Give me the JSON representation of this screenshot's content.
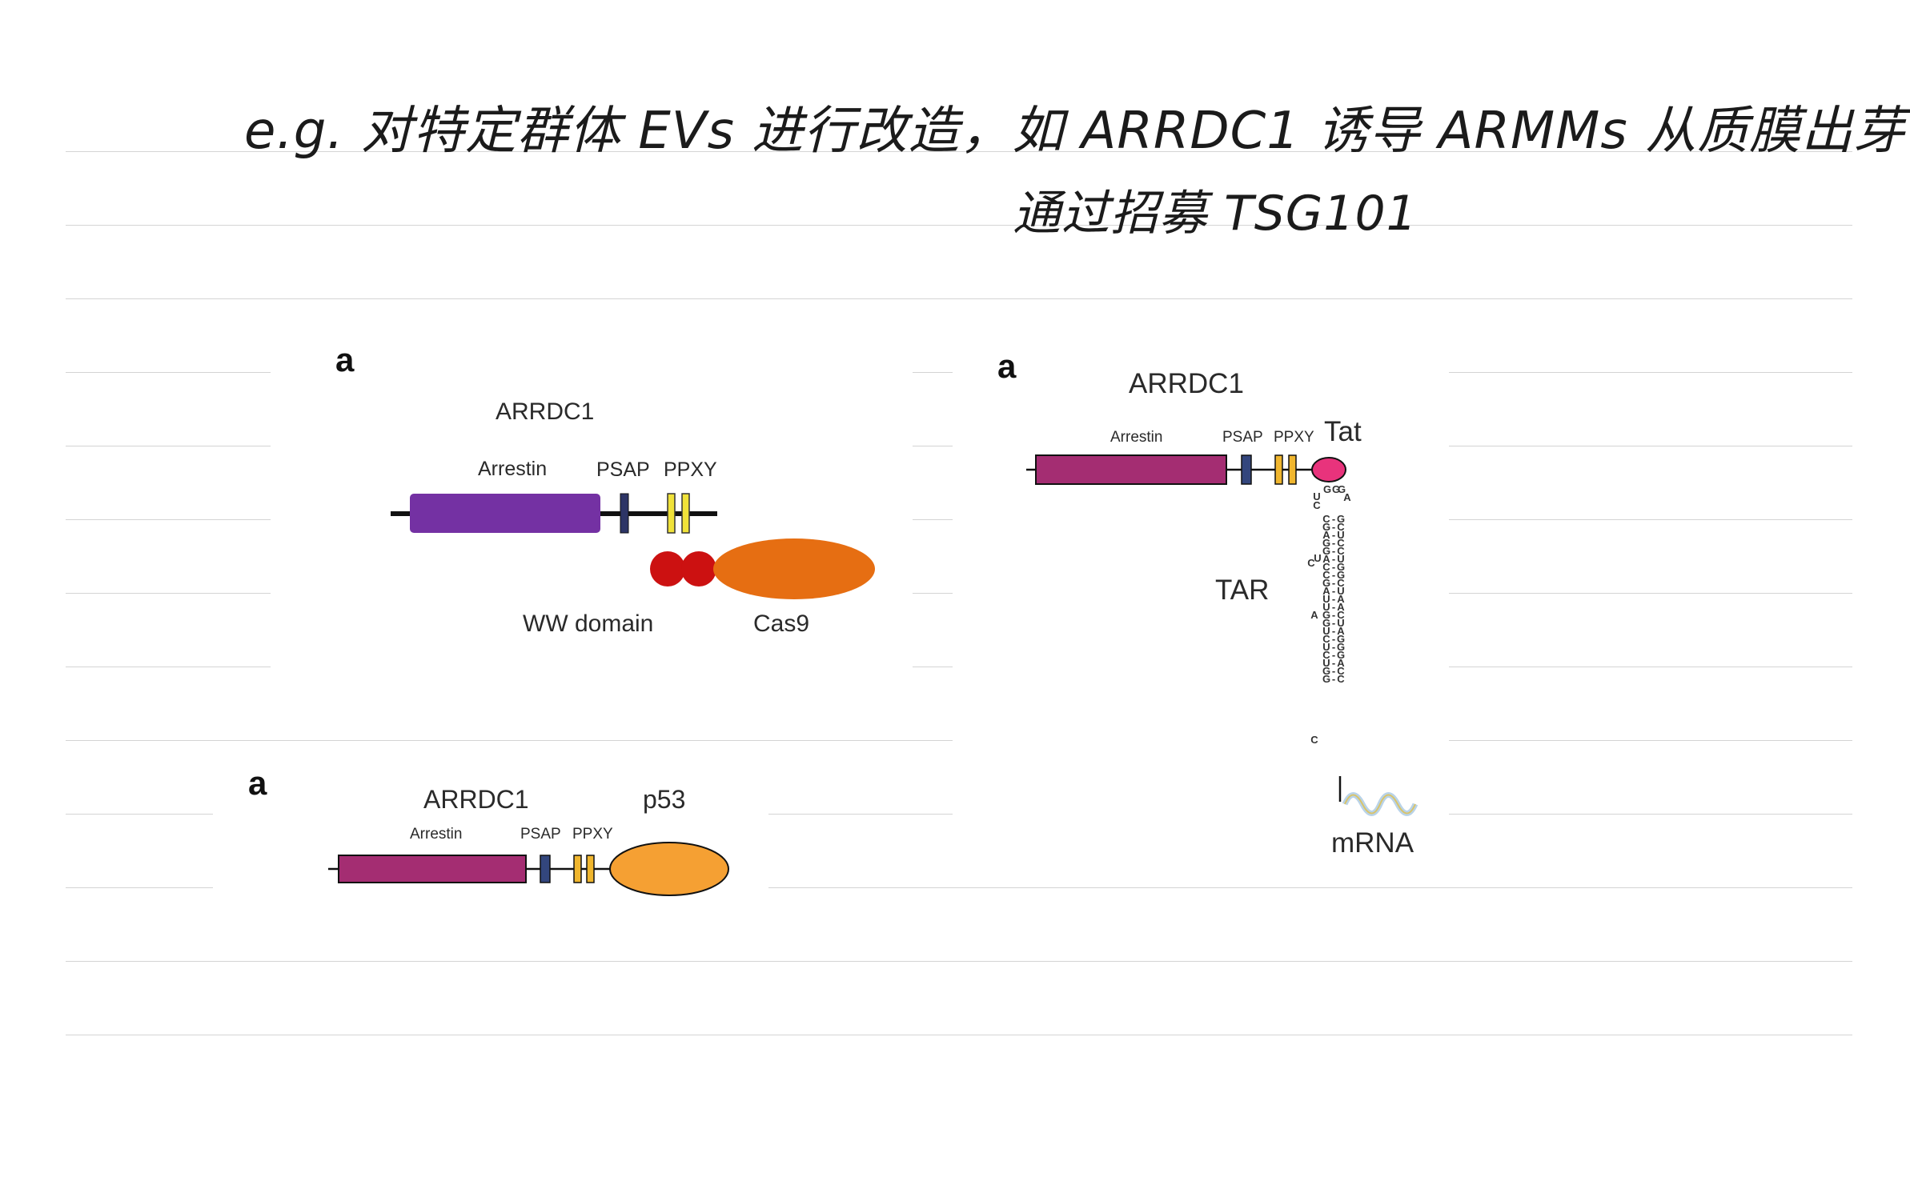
{
  "notes": {
    "line1": "e.g. 对特定群体 EVs 进行改造，如 ARRDC1 诱导 ARMMs 从质膜出芽，",
    "line2": "通过招募 TSG101"
  },
  "panel_cas9": {
    "letter": "a",
    "protein": "ARRDC1",
    "domains": [
      "Arrestin",
      "PSAP",
      "PPXY"
    ],
    "ww_domain": "WW domain",
    "fusion": "Cas9",
    "colors": {
      "arrestin": "#7431a3",
      "psap": "#2d3566",
      "ppxy": "#f0e23a",
      "ww": "#cc1111",
      "cas9": "#e66e12"
    }
  },
  "panel_p53": {
    "letter": "a",
    "protein": "ARRDC1",
    "domains": [
      "Arrestin",
      "PSAP",
      "PPXY"
    ],
    "fusion": "p53",
    "colors": {
      "arrestin": "#a42d72",
      "psap": "#33467d",
      "ppxy": "#f0b62e",
      "p53": "#f5a033"
    }
  },
  "panel_tat": {
    "letter": "a",
    "protein": "ARRDC1",
    "domains": [
      "Arrestin",
      "PSAP",
      "PPXY"
    ],
    "fusion": "Tat",
    "rna_element": "TAR",
    "transcript": "mRNA",
    "tar_loop": [
      "U",
      "G",
      "G",
      "G",
      "A",
      "C"
    ],
    "tar_left_strand": [
      "C",
      "G",
      "A",
      "G",
      "G",
      "A",
      "C",
      "C",
      "G",
      "A",
      "U",
      "U",
      "G",
      "G",
      "U",
      "C",
      "U",
      "C",
      "U",
      "G",
      "G"
    ],
    "tar_right_strand": [
      "G",
      "C",
      "U",
      "C",
      "C",
      "U",
      "G",
      "G",
      "C",
      "U",
      "A",
      "A",
      "C",
      "U",
      "A",
      "G",
      "G",
      "G",
      "A",
      "C",
      "C"
    ],
    "bulges": [
      "C",
      "U",
      "A",
      "C"
    ],
    "colors": {
      "arrestin": "#a42d72",
      "psap": "#33467d",
      "ppxy": "#f0b62e",
      "tat": "#e8337c"
    }
  }
}
